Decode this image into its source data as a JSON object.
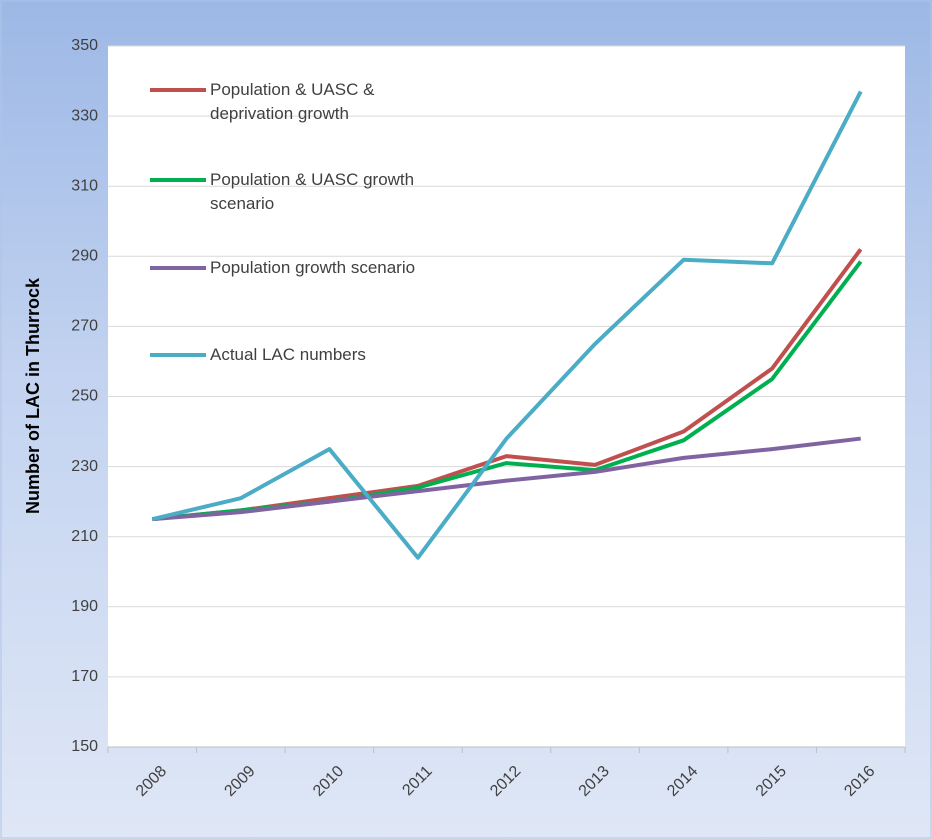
{
  "chart_data": {
    "type": "line",
    "y_label": "Number of LAC in Thurrock",
    "categories": [
      "2008",
      "2009",
      "2010",
      "2011",
      "2012",
      "2013",
      "2014",
      "2015",
      "2016"
    ],
    "series": [
      {
        "name": "Population & UASC & deprivation growth",
        "color": "#c0504d",
        "values": [
          215,
          217.5,
          221,
          224.5,
          233,
          230.5,
          240,
          258,
          292
        ]
      },
      {
        "name": "Population & UASC growth scenario",
        "color": "#00b050",
        "values": [
          215,
          217.5,
          220,
          224,
          231,
          229,
          237.5,
          255,
          288.5
        ]
      },
      {
        "name": "Population growth scenario",
        "color": "#8064a2",
        "values": [
          215,
          217,
          220,
          223,
          226,
          228.5,
          232.5,
          235,
          238
        ]
      },
      {
        "name": "Actual LAC numbers",
        "color": "#4bacc6",
        "values": [
          215,
          221,
          235,
          204,
          238,
          265,
          289,
          288,
          337
        ]
      }
    ],
    "ylim": [
      150,
      350
    ],
    "yticks": [
      150,
      170,
      190,
      210,
      230,
      250,
      270,
      290,
      310,
      330,
      350
    ],
    "grid": true
  }
}
